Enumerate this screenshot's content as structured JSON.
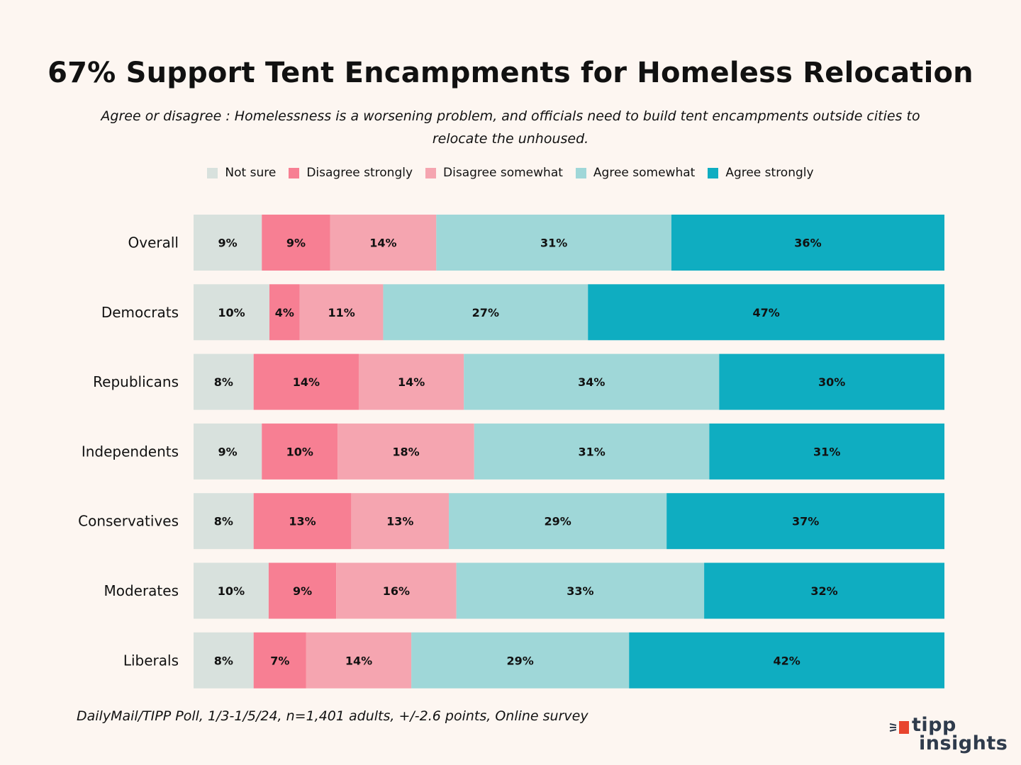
{
  "chart_data": {
    "type": "bar",
    "orientation": "horizontal",
    "stacked": true,
    "normalized": true,
    "title": "67% Support Tent Encampments for Homeless Relocation",
    "subtitle": "Agree or disagree : Homelessness is a worsening problem, and officials need to build tent encampments outside cities to relocate the unhoused.",
    "legend_position": "top",
    "categories": [
      "Overall",
      "Democrats",
      "Republicans",
      "Independents",
      "Conservatives",
      "Moderates",
      "Liberals"
    ],
    "series": [
      {
        "name": "Not sure",
        "color": "#d8e1dd",
        "values": [
          9,
          10,
          8,
          9,
          8,
          10,
          8
        ]
      },
      {
        "name": "Disagree strongly",
        "color": "#f77f93",
        "values": [
          9,
          4,
          14,
          10,
          13,
          9,
          7
        ]
      },
      {
        "name": "Disagree somewhat",
        "color": "#f5a5b0",
        "values": [
          14,
          11,
          14,
          18,
          13,
          16,
          14
        ]
      },
      {
        "name": "Agree somewhat",
        "color": "#9fd7d8",
        "values": [
          31,
          27,
          34,
          31,
          29,
          33,
          29
        ]
      },
      {
        "name": "Agree strongly",
        "color": "#0fadc1",
        "values": [
          36,
          47,
          30,
          31,
          37,
          32,
          42
        ]
      }
    ],
    "value_suffix": "%"
  },
  "footnote": "DailyMail/TIPP Poll, 1/3-1/5/24, n=1,401 adults, +/-2.6 points, Online survey",
  "logo": {
    "line1": "tipp",
    "line2": "insights",
    "accent_color": "#e8442e",
    "text_color": "#2f3b4c"
  },
  "colors": {
    "background": "#fdf6f1"
  }
}
